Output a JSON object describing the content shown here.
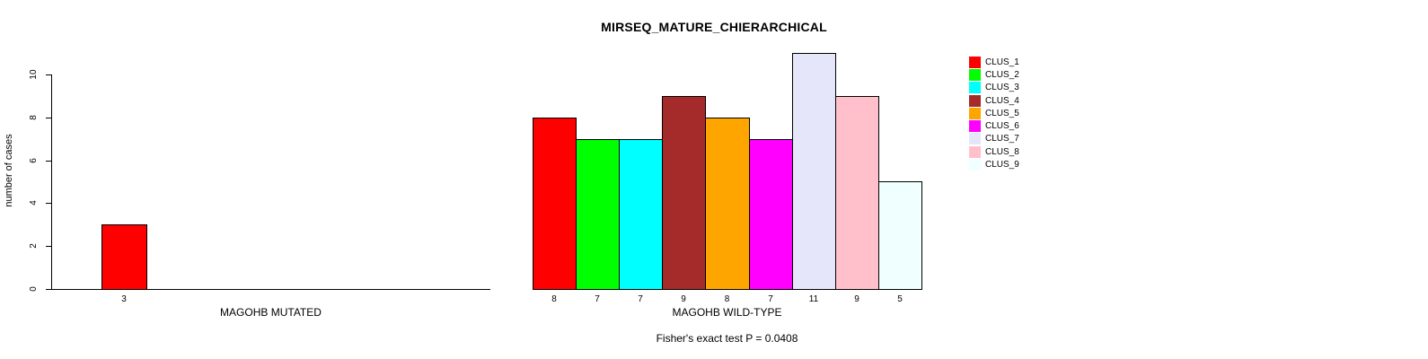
{
  "chart_data": {
    "type": "bar",
    "title": "MIRSEQ_MATURE_CHIERARCHICAL",
    "ylabel": "number of cases",
    "xlabel": "",
    "ylim": [
      0,
      10
    ],
    "yticks": [
      "0",
      "2",
      "4",
      "6",
      "8",
      "10"
    ],
    "grid": false,
    "legend_position": "right",
    "footnote": "Fisher's exact test P = 0.0408",
    "panels": [
      {
        "xlabel": "MAGOHB MUTATED",
        "categories": [
          "CLUS_1"
        ],
        "values": [
          3
        ],
        "bar_labels": [
          "3"
        ],
        "colors": [
          "#FF0000"
        ]
      },
      {
        "xlabel": "MAGOHB WILD-TYPE",
        "categories": [
          "CLUS_1",
          "CLUS_2",
          "CLUS_3",
          "CLUS_4",
          "CLUS_5",
          "CLUS_6",
          "CLUS_7",
          "CLUS_8",
          "CLUS_9"
        ],
        "values": [
          8,
          7,
          7,
          9,
          8,
          7,
          11,
          9,
          5
        ],
        "bar_labels": [
          "8",
          "7",
          "7",
          "9",
          "8",
          "7",
          "11",
          "9",
          "5"
        ],
        "colors": [
          "#FF0000",
          "#00FF00",
          "#00FFFF",
          "#A52A2A",
          "#FFA500",
          "#FF00FF",
          "#E6E6FA",
          "#FFC0CB",
          "#F0FFFF"
        ]
      }
    ],
    "legend": [
      {
        "label": "CLUS_1",
        "color": "#FF0000"
      },
      {
        "label": "CLUS_2",
        "color": "#00FF00"
      },
      {
        "label": "CLUS_3",
        "color": "#00FFFF"
      },
      {
        "label": "CLUS_4",
        "color": "#A52A2A"
      },
      {
        "label": "CLUS_5",
        "color": "#FFA500"
      },
      {
        "label": "CLUS_6",
        "color": "#FF00FF"
      },
      {
        "label": "CLUS_7",
        "color": "#E6E6FA"
      },
      {
        "label": "CLUS_8",
        "color": "#FFC0CB"
      },
      {
        "label": "CLUS_9",
        "color": "#F0FFFF"
      }
    ],
    "axis_color": "#000000",
    "bar_border_color": "#000000"
  }
}
